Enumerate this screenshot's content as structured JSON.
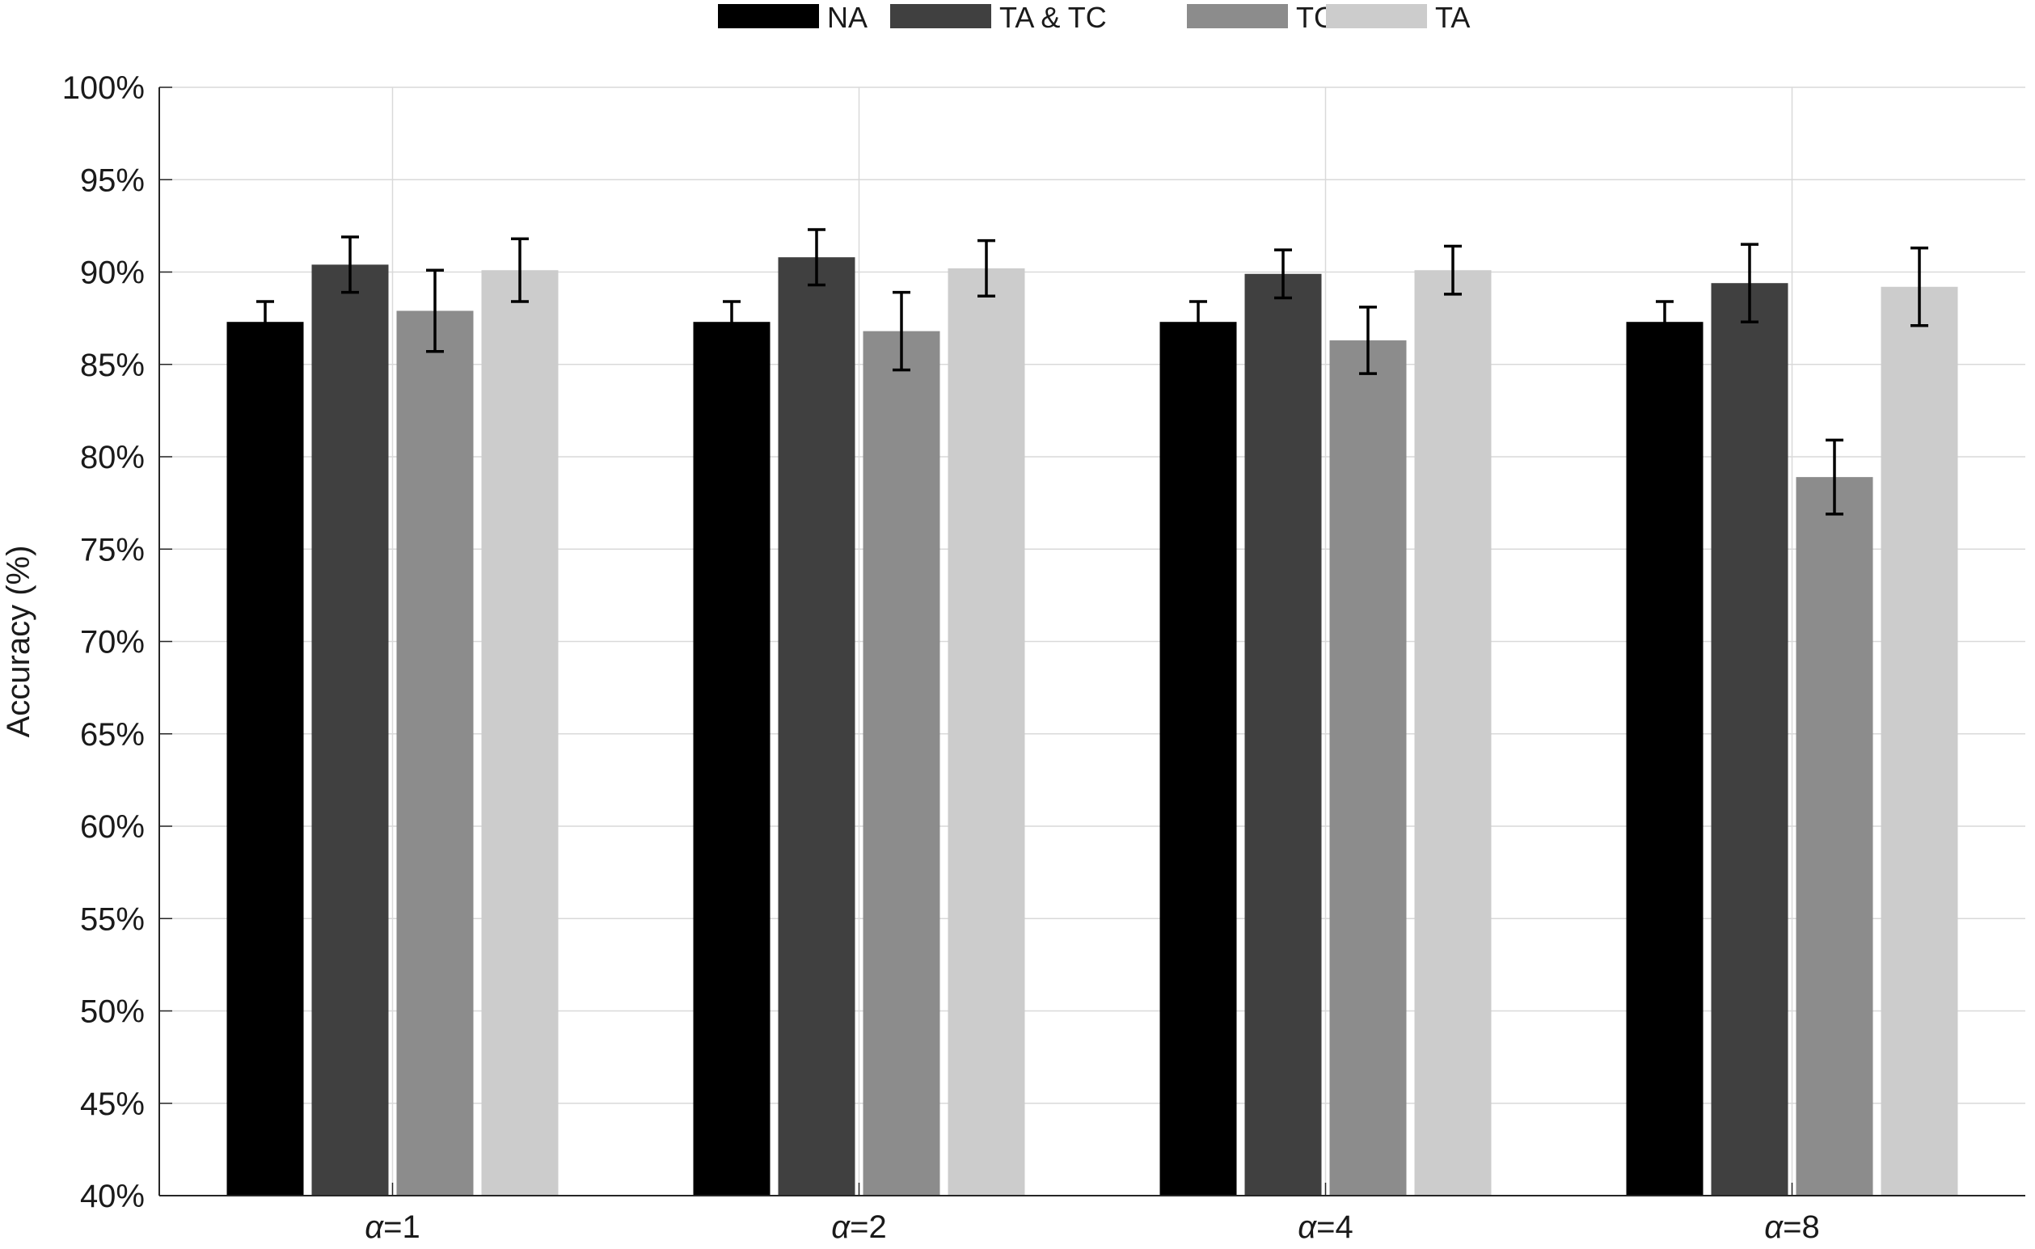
{
  "chart_data": {
    "type": "bar",
    "categories": [
      "α=1",
      "α=2",
      "α=4",
      "α=8"
    ],
    "series": [
      {
        "name": "NA",
        "color": "#000000",
        "values": [
          87.3,
          87.3,
          87.3,
          87.3
        ],
        "error": [
          1.1,
          1.1,
          1.1,
          1.1
        ]
      },
      {
        "name": "TA & TC",
        "color": "#404040",
        "values": [
          90.4,
          90.8,
          89.9,
          89.4
        ],
        "error": [
          1.5,
          1.5,
          1.3,
          2.1
        ]
      },
      {
        "name": "TC",
        "color": "#8c8c8c",
        "values": [
          87.9,
          86.8,
          86.3,
          78.9
        ],
        "error": [
          2.2,
          2.1,
          1.8,
          2.0
        ]
      },
      {
        "name": "TA",
        "color": "#cccccc",
        "values": [
          90.1,
          90.2,
          90.1,
          89.2
        ],
        "error": [
          1.7,
          1.5,
          1.3,
          2.1
        ]
      }
    ],
    "ylabel": "Accuracy (%)",
    "xlabel": "",
    "ylim": [
      40,
      100
    ],
    "yticks": [
      "40%",
      "45%",
      "50%",
      "55%",
      "60%",
      "65%",
      "70%",
      "75%",
      "80%",
      "85%",
      "90%",
      "95%",
      "100%"
    ],
    "grid": true,
    "legend_position": "top-center",
    "error_bars": true
  }
}
